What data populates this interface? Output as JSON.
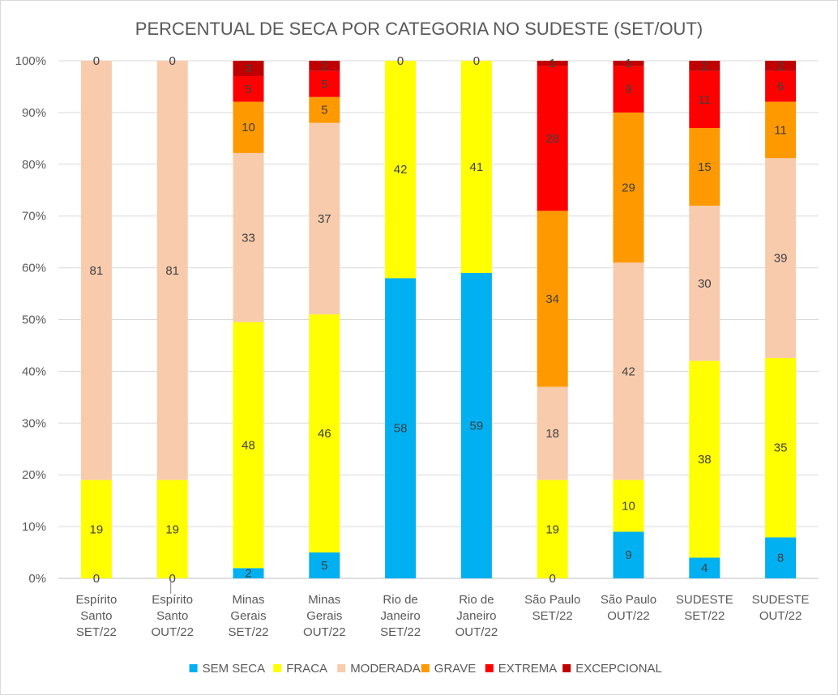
{
  "chart_data": {
    "type": "bar",
    "stacked": "percent",
    "title": "PERCENTUAL DE SECA POR CATEGORIA NO SUDESTE (SET/OUT)",
    "categories": [
      [
        "Espírito",
        "Santo",
        "SET/22"
      ],
      [
        "Espírito",
        "Santo",
        "OUT/22"
      ],
      [
        "Minas",
        "Gerais",
        "SET/22"
      ],
      [
        "Minas",
        "Gerais",
        "OUT/22"
      ],
      [
        "Rio de",
        "Janeiro",
        "SET/22"
      ],
      [
        "Rio de",
        "Janeiro",
        "OUT/22"
      ],
      [
        "São Paulo",
        "SET/22"
      ],
      [
        "São Paulo",
        "OUT/22"
      ],
      [
        "SUDESTE",
        "SET/22"
      ],
      [
        "SUDESTE",
        "OUT/22"
      ]
    ],
    "series": [
      {
        "name": "SEM SECA",
        "color": "#00B0F0",
        "values": [
          0,
          0,
          2,
          5,
          58,
          59,
          0,
          9,
          4,
          8
        ],
        "labels": [
          "0",
          "0",
          "2",
          "5",
          "58",
          "59",
          "0",
          "9",
          "4",
          "8"
        ]
      },
      {
        "name": "FRACA",
        "color": "#FFFF00",
        "values": [
          19,
          19,
          48,
          46,
          42,
          41,
          19,
          10,
          38,
          35
        ],
        "labels": [
          "19",
          "19",
          "48",
          "46",
          "42",
          "41",
          "19",
          "10",
          "38",
          "35"
        ]
      },
      {
        "name": "MODERADA",
        "color": "#F8CBAD",
        "values": [
          81,
          81,
          33,
          37,
          0,
          0,
          18,
          42,
          30,
          39
        ],
        "labels": [
          "81",
          "81",
          "33",
          "37",
          "",
          "",
          "18",
          "42",
          "30",
          "39"
        ]
      },
      {
        "name": "GRAVE",
        "color": "#FF9900",
        "values": [
          0,
          0,
          10,
          5,
          0,
          0,
          34,
          29,
          15,
          11
        ],
        "labels": [
          "",
          "",
          "10",
          "5",
          "",
          "",
          "34",
          "29",
          "15",
          "11"
        ]
      },
      {
        "name": "EXTREMA",
        "color": "#FF0000",
        "values": [
          0,
          0,
          5,
          5,
          0,
          0,
          28,
          9,
          11,
          6
        ],
        "labels": [
          "",
          "",
          "5",
          "5",
          "",
          "",
          "28",
          "9",
          "11",
          "6"
        ]
      },
      {
        "name": "EXCEPCIONAL",
        "color": "#C00000",
        "values": [
          0,
          0,
          3,
          2,
          0,
          0,
          1,
          1,
          2,
          2
        ],
        "labels": [
          "0",
          "0",
          "3",
          "2",
          "0",
          "0",
          "1",
          "1",
          "2",
          "2"
        ]
      }
    ],
    "y_ticks": [
      "0%",
      "10%",
      "20%",
      "30%",
      "40%",
      "50%",
      "60%",
      "70%",
      "80%",
      "90%",
      "100%"
    ],
    "ylim": [
      0,
      100
    ],
    "xlabel": "",
    "ylabel": "",
    "grid": true,
    "legend": "bottom"
  }
}
